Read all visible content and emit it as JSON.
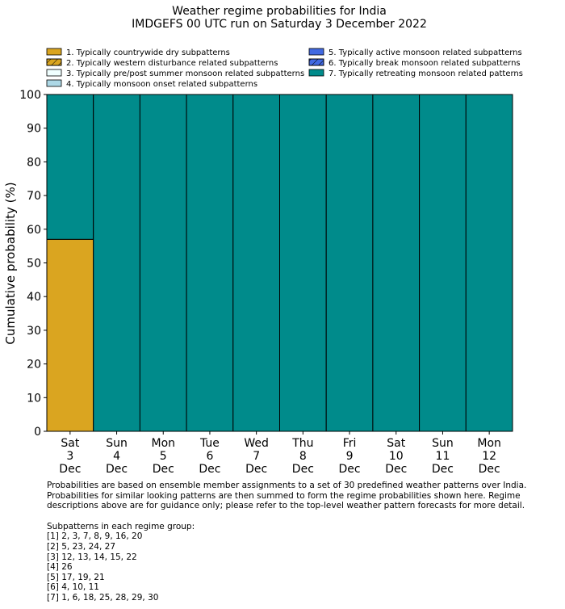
{
  "chart_data": {
    "type": "bar",
    "stacked": true,
    "title": "Weather regime probabilities for India",
    "subtitle": "IMDGEFS 00 UTC run on Saturday 3 December 2022",
    "ylabel": "Cumulative probability (%)",
    "xlabel": "",
    "ylim": [
      0,
      100
    ],
    "yticks": [
      0,
      10,
      20,
      30,
      40,
      50,
      60,
      70,
      80,
      90,
      100
    ],
    "categories": [
      [
        "Sat",
        "3",
        "Dec"
      ],
      [
        "Sun",
        "4",
        "Dec"
      ],
      [
        "Mon",
        "5",
        "Dec"
      ],
      [
        "Tue",
        "6",
        "Dec"
      ],
      [
        "Wed",
        "7",
        "Dec"
      ],
      [
        "Thu",
        "8",
        "Dec"
      ],
      [
        "Fri",
        "9",
        "Dec"
      ],
      [
        "Sat",
        "10",
        "Dec"
      ],
      [
        "Sun",
        "11",
        "Dec"
      ],
      [
        "Mon",
        "12",
        "Dec"
      ]
    ],
    "legend_placement": "top",
    "series": [
      {
        "name": "1. Typically countrywide dry subpatterns",
        "color": "#DAA520",
        "hatch": false,
        "values": [
          57,
          0,
          0,
          0,
          0,
          0,
          0,
          0,
          0,
          0
        ]
      },
      {
        "name": "2. Typically western disturbance related subpatterns",
        "color": "#DAA520",
        "hatch": true,
        "values": [
          0,
          0,
          0,
          0,
          0,
          0,
          0,
          0,
          0,
          0
        ]
      },
      {
        "name": "3. Typically pre/post summer monsoon related subpatterns",
        "color": "#F0FFFF",
        "hatch": false,
        "values": [
          0,
          0,
          0,
          0,
          0,
          0,
          0,
          0,
          0,
          0
        ]
      },
      {
        "name": "4. Typically monsoon onset related subpatterns",
        "color": "#ADD8E6",
        "hatch": false,
        "values": [
          0,
          0,
          0,
          0,
          0,
          0,
          0,
          0,
          0,
          0
        ]
      },
      {
        "name": "5. Typically active monsoon related subpatterns",
        "color": "#4169E1",
        "hatch": false,
        "values": [
          0,
          0,
          0,
          0,
          0,
          0,
          0,
          0,
          0,
          0
        ]
      },
      {
        "name": "6. Typically break monsoon related subpatterns",
        "color": "#4169E1",
        "hatch": true,
        "values": [
          0,
          0,
          0,
          0,
          0,
          0,
          0,
          0,
          0,
          0
        ]
      },
      {
        "name": "7. Typically retreating monsoon related patterns",
        "color": "#008B8B",
        "hatch": false,
        "values": [
          43,
          100,
          100,
          100,
          100,
          100,
          100,
          100,
          100,
          100
        ]
      }
    ]
  },
  "notes": {
    "paragraph": [
      "Probabilities are based on ensemble member assignments to a set of 30 predefined weather patterns over India.",
      "Probabilities for similar looking patterns are then summed to form the regime probabilities shown here. Regime",
      "descriptions above are for guidance only; please refer to the top-level weather pattern forecasts for more detail."
    ],
    "groups_heading": "Subpatterns in each regime group:",
    "groups": [
      "[1] 2, 3, 7, 8, 9, 16, 20",
      "[2] 5, 23, 24, 27",
      "[3] 12, 13, 14, 15, 22",
      "[4] 26",
      "[5] 17, 19, 21",
      "[6] 4, 10, 11",
      "[7] 1, 6, 18, 25, 28, 29, 30"
    ]
  }
}
